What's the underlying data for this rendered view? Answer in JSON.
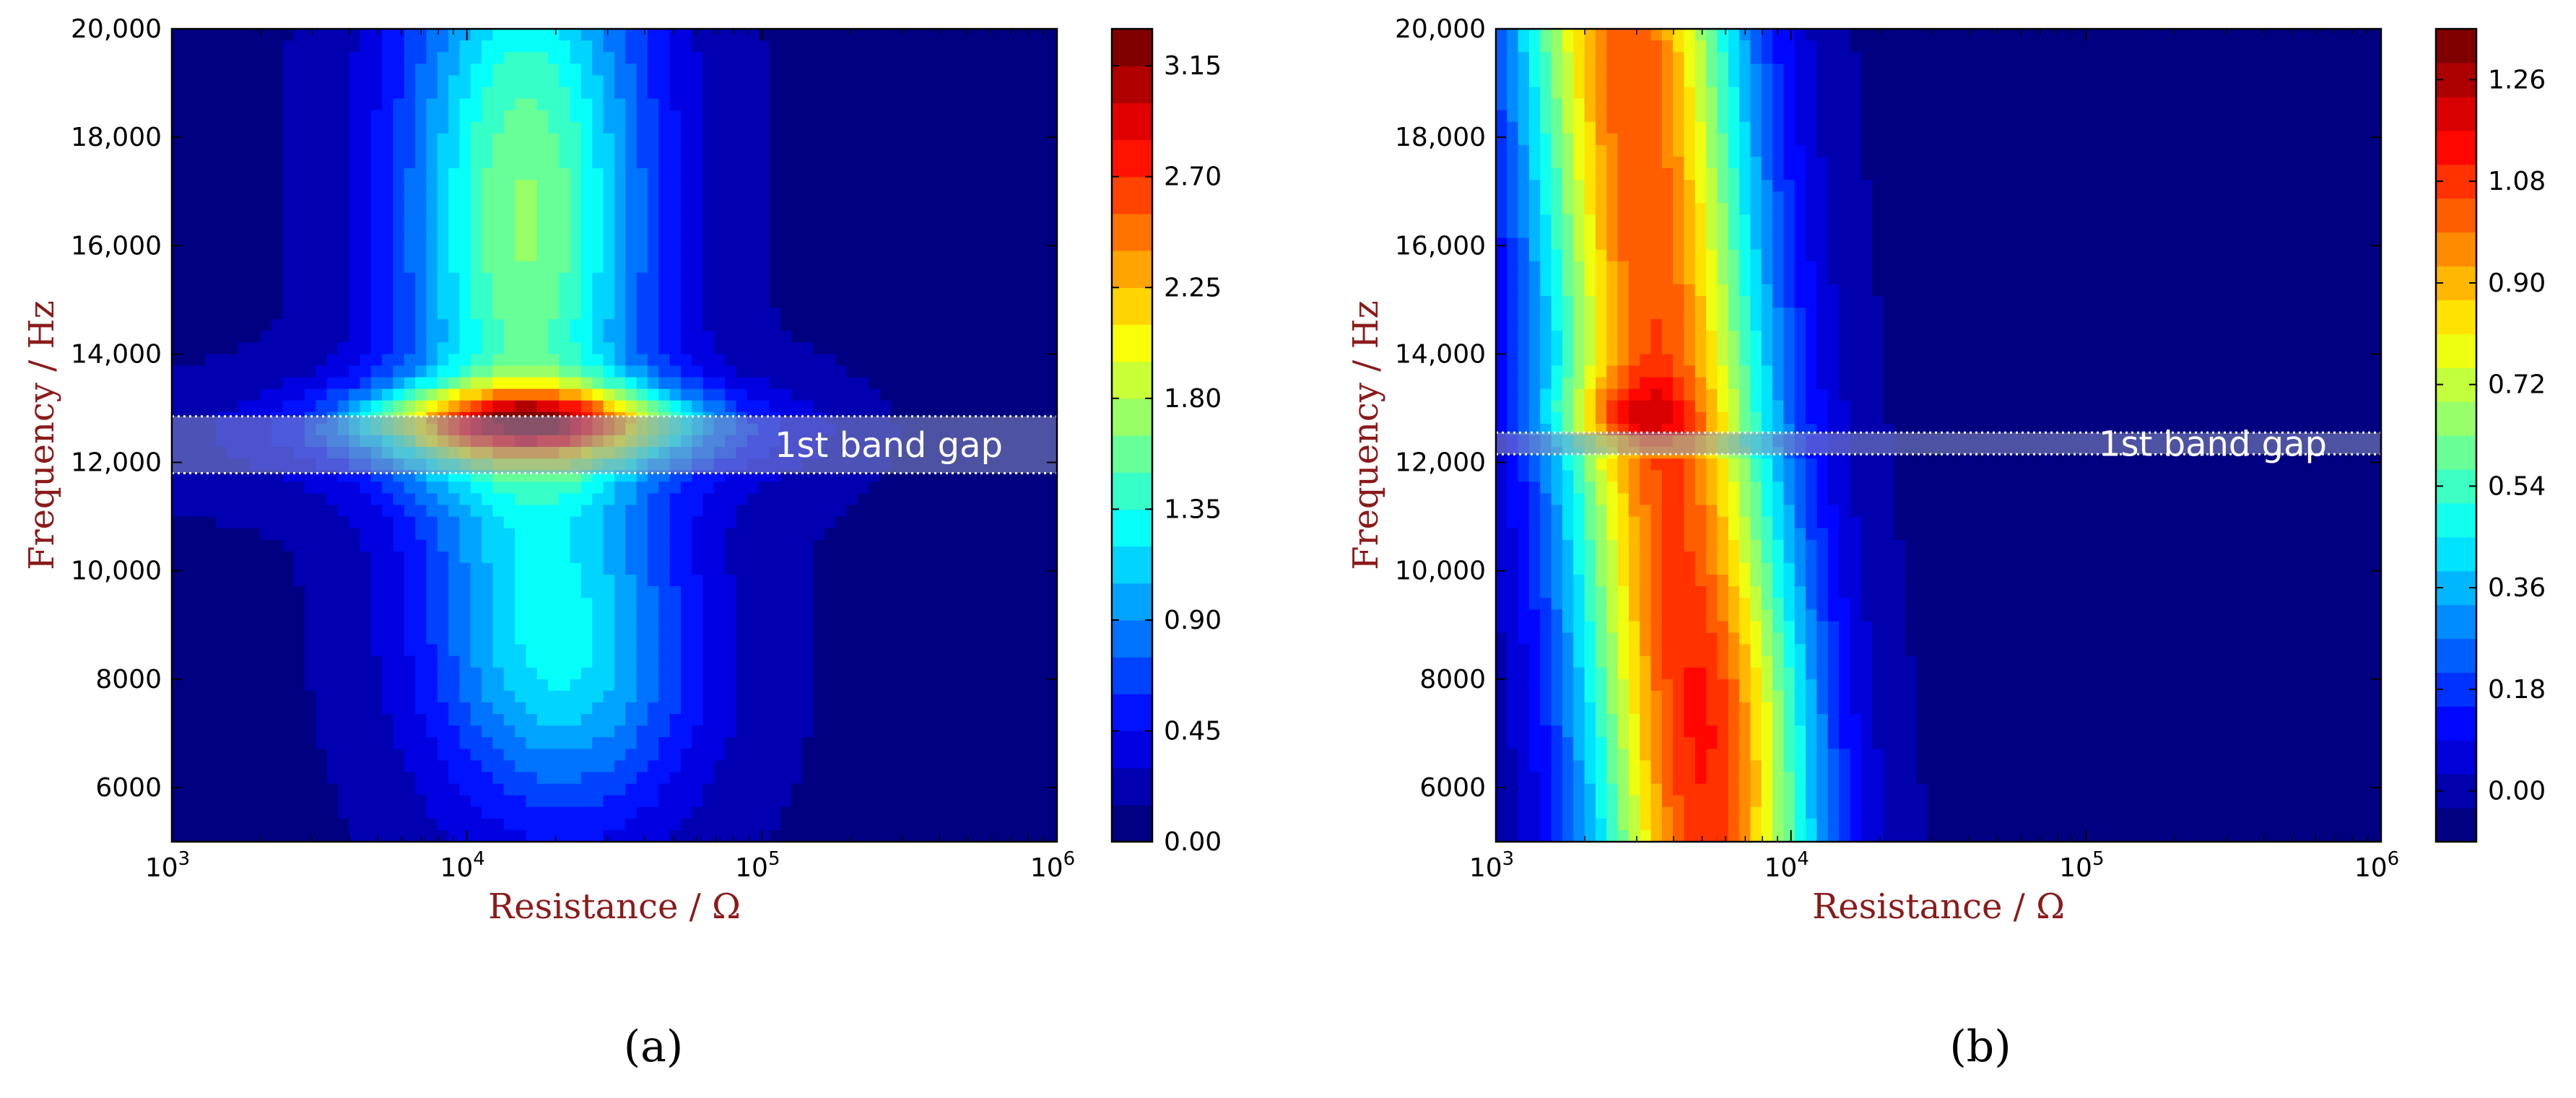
{
  "chart_data": [
    {
      "type": "heatmap",
      "panel_label": "(a)",
      "xlabel": "Resistance / Ω",
      "ylabel": "Frequency / Hz",
      "x_scale": "log",
      "xlim": [
        1000,
        1000000
      ],
      "ylim": [
        5000,
        20000
      ],
      "x_ticks": [
        {
          "value": 1000,
          "base": "10",
          "exp": "3"
        },
        {
          "value": 10000,
          "base": "10",
          "exp": "4"
        },
        {
          "value": 100000,
          "base": "10",
          "exp": "5"
        },
        {
          "value": 1000000,
          "base": "10",
          "exp": "6"
        }
      ],
      "y_ticks": [
        {
          "value": 6000,
          "label": "6000"
        },
        {
          "value": 8000,
          "label": "8000"
        },
        {
          "value": 10000,
          "label": "10,000"
        },
        {
          "value": 12000,
          "label": "12,000"
        },
        {
          "value": 14000,
          "label": "14,000"
        },
        {
          "value": 16000,
          "label": "16,000"
        },
        {
          "value": 18000,
          "label": "18,000"
        },
        {
          "value": 20000,
          "label": "20,000"
        }
      ],
      "band_gap": {
        "label": "1st band gap",
        "y_range": [
          11800,
          12850
        ]
      },
      "colorbar": {
        "min": 0.0,
        "max": 3.3,
        "levels": 22,
        "ticks": [
          {
            "value": 0.0,
            "label": "0.00"
          },
          {
            "value": 0.45,
            "label": "0.45"
          },
          {
            "value": 0.9,
            "label": "0.90"
          },
          {
            "value": 1.35,
            "label": "1.35"
          },
          {
            "value": 1.8,
            "label": "1.80"
          },
          {
            "value": 2.25,
            "label": "2.25"
          },
          {
            "value": 2.7,
            "label": "2.70"
          },
          {
            "value": 3.15,
            "label": "3.15"
          }
        ]
      },
      "peaks": [
        {
          "r": 15000,
          "f": 12800,
          "value": 3.2
        },
        {
          "r": 20000,
          "f": 8500,
          "value": 0.95
        },
        {
          "r": 13000,
          "f": 17000,
          "value": 1.7
        }
      ]
    },
    {
      "type": "heatmap",
      "panel_label": "(b)",
      "xlabel": "Resistance / Ω",
      "ylabel": "Frequency / Hz",
      "x_scale": "log",
      "xlim": [
        1000,
        1000000
      ],
      "ylim": [
        5000,
        20000
      ],
      "x_ticks": [
        {
          "value": 1000,
          "base": "10",
          "exp": "3"
        },
        {
          "value": 10000,
          "base": "10",
          "exp": "4"
        },
        {
          "value": 100000,
          "base": "10",
          "exp": "5"
        },
        {
          "value": 1000000,
          "base": "10",
          "exp": "6"
        }
      ],
      "y_ticks": [
        {
          "value": 6000,
          "label": "6000"
        },
        {
          "value": 8000,
          "label": "8000"
        },
        {
          "value": 10000,
          "label": "10,000"
        },
        {
          "value": 12000,
          "label": "12,000"
        },
        {
          "value": 14000,
          "label": "14,000"
        },
        {
          "value": 16000,
          "label": "16,000"
        },
        {
          "value": 18000,
          "label": "18,000"
        },
        {
          "value": 20000,
          "label": "20,000"
        }
      ],
      "band_gap": {
        "label": "1st band gap",
        "y_range": [
          12150,
          12550
        ]
      },
      "colorbar": {
        "min": -0.09,
        "max": 1.35,
        "levels": 24,
        "ticks": [
          {
            "value": 0.0,
            "label": "0.00"
          },
          {
            "value": 0.18,
            "label": "0.18"
          },
          {
            "value": 0.36,
            "label": "0.36"
          },
          {
            "value": 0.54,
            "label": "0.54"
          },
          {
            "value": 0.72,
            "label": "0.72"
          },
          {
            "value": 0.9,
            "label": "0.90"
          },
          {
            "value": 1.08,
            "label": "1.08"
          },
          {
            "value": 1.26,
            "label": "1.26"
          }
        ]
      },
      "peaks": [
        {
          "r": 4200,
          "f": 12900,
          "value": 1.3
        },
        {
          "r": 7000,
          "f": 7500,
          "value": 1.1
        },
        {
          "r": 3000,
          "f": 17000,
          "value": 0.9
        }
      ]
    }
  ]
}
